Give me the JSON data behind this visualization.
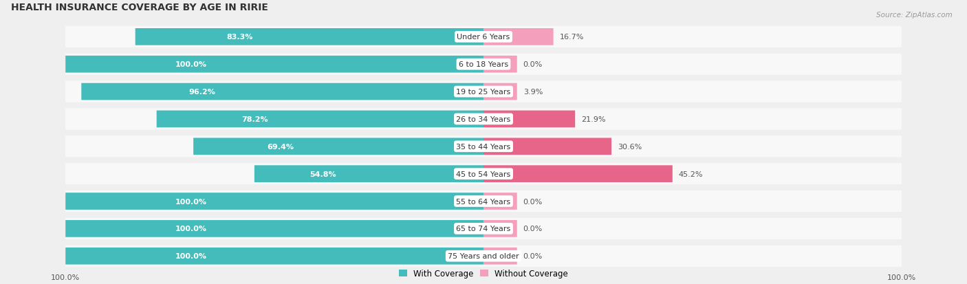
{
  "title": "HEALTH INSURANCE COVERAGE BY AGE IN RIRIE",
  "source": "Source: ZipAtlas.com",
  "categories": [
    "Under 6 Years",
    "6 to 18 Years",
    "19 to 25 Years",
    "26 to 34 Years",
    "35 to 44 Years",
    "45 to 54 Years",
    "55 to 64 Years",
    "65 to 74 Years",
    "75 Years and older"
  ],
  "with_coverage": [
    83.3,
    100.0,
    96.2,
    78.2,
    69.4,
    54.8,
    100.0,
    100.0,
    100.0
  ],
  "without_coverage": [
    16.7,
    0.0,
    3.9,
    21.9,
    30.6,
    45.2,
    0.0,
    0.0,
    0.0
  ],
  "color_with": "#45BCBC",
  "color_without_large": "#E8658A",
  "color_without_small": "#F4A0BC",
  "bg_color": "#EFEFEF",
  "row_bg_color": "#F8F8F8",
  "title_fontsize": 10,
  "label_fontsize": 8,
  "tick_fontsize": 8,
  "legend_fontsize": 8.5,
  "source_fontsize": 7.5,
  "left_label_color": "white",
  "right_label_color": "#555555",
  "cat_label_color": "#333333",
  "max_val": 100,
  "zero_stub": 8,
  "legend_color_with": "#45BCBC",
  "legend_color_without": "#F4A0BC"
}
